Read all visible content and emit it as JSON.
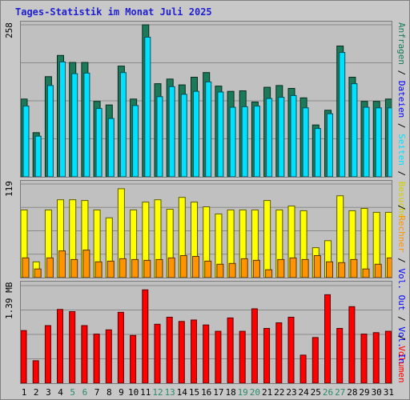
{
  "title": "Tages-Statistik im Monat Juli 2025",
  "chart_data": [
    {
      "type": "bar",
      "panel": "top",
      "y_scale_label": "258",
      "ylim": [
        0,
        258
      ],
      "categories": [
        "1",
        "2",
        "3",
        "4",
        "5",
        "6",
        "7",
        "8",
        "9",
        "10",
        "11",
        "12",
        "13",
        "14",
        "15",
        "16",
        "17",
        "18",
        "19",
        "20",
        "21",
        "22",
        "23",
        "24",
        "25",
        "26",
        "27",
        "28",
        "29",
        "30",
        "31"
      ],
      "series": [
        {
          "name": "Anfragen",
          "color": "#1a7a5a",
          "values": [
            132,
            75,
            170,
            206,
            194,
            194,
            128,
            122,
            188,
            132,
            258,
            158,
            166,
            156,
            169,
            177,
            154,
            145,
            146,
            127,
            152,
            155,
            150,
            134,
            88,
            113,
            222,
            169,
            128,
            128,
            132
          ]
        },
        {
          "name": "Dateien",
          "color": "#00e0ff",
          "values": [
            120,
            69,
            155,
            195,
            175,
            176,
            116,
            99,
            177,
            121,
            237,
            136,
            153,
            140,
            145,
            161,
            144,
            118,
            119,
            120,
            133,
            135,
            138,
            117,
            82,
            107,
            211,
            158,
            118,
            117,
            117
          ]
        }
      ]
    },
    {
      "type": "bar",
      "panel": "middle",
      "y_scale_label": "119",
      "ylim": [
        0,
        119
      ],
      "series": [
        {
          "name": "Besuche",
          "color": "#ffff00",
          "values": [
            86,
            20,
            86,
            99,
            99,
            98,
            86,
            76,
            113,
            86,
            96,
            99,
            87,
            102,
            96,
            90,
            81,
            86,
            86,
            86,
            98,
            86,
            91,
            85,
            38,
            47,
            104,
            85,
            88,
            83,
            83
          ]
        },
        {
          "name": "Rechner",
          "color": "#ff9400",
          "values": [
            25,
            11,
            25,
            34,
            23,
            35,
            20,
            21,
            24,
            23,
            22,
            23,
            25,
            28,
            27,
            21,
            17,
            18,
            24,
            22,
            10,
            23,
            25,
            23,
            28,
            20,
            19,
            23,
            11,
            17,
            25
          ]
        }
      ]
    },
    {
      "type": "bar",
      "panel": "bottom",
      "y_scale_label": "1.39 MB",
      "ylim": [
        0,
        1.39
      ],
      "series": [
        {
          "name": "Volumen",
          "color": "#ff0000",
          "values": [
            0.75,
            0.32,
            0.82,
            1.05,
            1.02,
            0.82,
            0.7,
            0.76,
            1.01,
            0.68,
            1.33,
            0.84,
            0.94,
            0.88,
            0.9,
            0.83,
            0.74,
            0.93,
            0.74,
            1.06,
            0.78,
            0.86,
            0.94,
            0.4,
            0.65,
            1.26,
            0.78,
            1.09,
            0.7,
            0.72,
            0.74
          ]
        }
      ]
    }
  ],
  "x_labels": [
    {
      "d": "1",
      "c": "#000000"
    },
    {
      "d": "2",
      "c": "#000000"
    },
    {
      "d": "3",
      "c": "#000000"
    },
    {
      "d": "4",
      "c": "#000000"
    },
    {
      "d": "5",
      "c": "#2a8a6a"
    },
    {
      "d": "6",
      "c": "#2a8a6a"
    },
    {
      "d": "7",
      "c": "#000000"
    },
    {
      "d": "8",
      "c": "#000000"
    },
    {
      "d": "9",
      "c": "#000000"
    },
    {
      "d": "10",
      "c": "#000000"
    },
    {
      "d": "11",
      "c": "#000000"
    },
    {
      "d": "12",
      "c": "#2a8a6a"
    },
    {
      "d": "13",
      "c": "#2a8a6a"
    },
    {
      "d": "14",
      "c": "#000000"
    },
    {
      "d": "15",
      "c": "#000000"
    },
    {
      "d": "16",
      "c": "#000000"
    },
    {
      "d": "17",
      "c": "#000000"
    },
    {
      "d": "18",
      "c": "#000000"
    },
    {
      "d": "19",
      "c": "#2a8a6a"
    },
    {
      "d": "20",
      "c": "#2a8a6a"
    },
    {
      "d": "21",
      "c": "#000000"
    },
    {
      "d": "22",
      "c": "#000000"
    },
    {
      "d": "23",
      "c": "#000000"
    },
    {
      "d": "24",
      "c": "#000000"
    },
    {
      "d": "25",
      "c": "#000000"
    },
    {
      "d": "26",
      "c": "#2a8a6a"
    },
    {
      "d": "27",
      "c": "#2a8a6a"
    },
    {
      "d": "28",
      "c": "#000000"
    },
    {
      "d": "29",
      "c": "#000000"
    },
    {
      "d": "30",
      "c": "#000000"
    },
    {
      "d": "31",
      "c": "#000000"
    }
  ],
  "right_labels": {
    "top": [
      {
        "t": "Anfragen",
        "c": "#1a7a5a"
      },
      {
        "t": " / ",
        "c": "#000000"
      },
      {
        "t": "Dateien",
        "c": "#0000ff"
      },
      {
        "t": " / ",
        "c": "#000000"
      },
      {
        "t": "Seiten",
        "c": "#00e0ff"
      },
      {
        "t": " / ",
        "c": "#000000"
      },
      {
        "t": "Besuche",
        "c": "#d0d000"
      }
    ],
    "middle": [
      {
        "t": " / ",
        "c": "#000000"
      },
      {
        "t": "Rechner",
        "c": "#ff9400"
      },
      {
        "t": " / ",
        "c": "#000000"
      },
      {
        "t": "Vol. Out",
        "c": "#0000ff"
      },
      {
        "t": " / ",
        "c": "#000000"
      },
      {
        "t": "Vol. In",
        "c": "#0000ff"
      }
    ],
    "bottom": [
      {
        "t": " / ",
        "c": "#000000"
      },
      {
        "t": "Volumen",
        "c": "#ff0000"
      }
    ]
  }
}
